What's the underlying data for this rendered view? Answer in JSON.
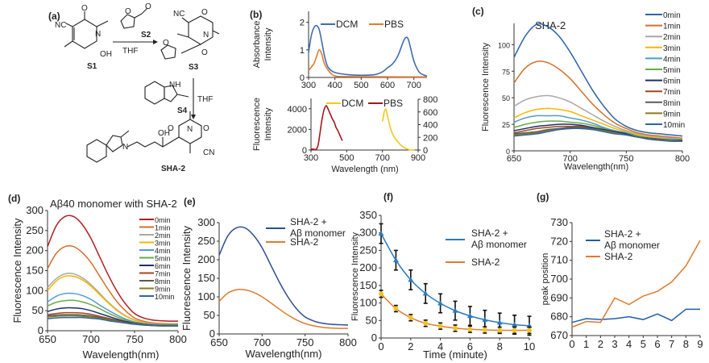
{
  "panel_labels": [
    "(a)",
    "(b)",
    "(c)",
    "(d)",
    "(e)",
    "(f)",
    "(g)"
  ],
  "scheme": {
    "S1": "S1",
    "S2": "S2",
    "S3": "S3",
    "S4": "S4",
    "product": "SHA-2",
    "reagent1": "THF",
    "reagent2": "THF",
    "atoms": {
      "NC": "NC",
      "CN": "CN",
      "N": "N",
      "O": "O",
      "OH": "OH",
      "NH": "NH"
    }
  },
  "chart_data": [
    {
      "id": "b_abs",
      "type": "line",
      "title": "",
      "xlabel": "",
      "ylabel": [
        "Absorbance",
        "Intensity"
      ],
      "xlim": [
        300,
        750
      ],
      "ylim": [
        0,
        2.4
      ],
      "xticks": [
        300,
        400,
        500,
        600,
        700
      ],
      "yticks": [
        0,
        1,
        2
      ],
      "legend": "top-center-horizontal",
      "series": [
        {
          "name": "DCM",
          "color": "#3d6eb0",
          "x": [
            300,
            310,
            320,
            330,
            340,
            350,
            360,
            370,
            380,
            400,
            450,
            500,
            550,
            580,
            600,
            620,
            640,
            660,
            670,
            680,
            700,
            720,
            740,
            750
          ],
          "y": [
            0.9,
            1.5,
            1.8,
            1.88,
            1.75,
            1.3,
            0.8,
            0.45,
            0.3,
            0.18,
            0.1,
            0.08,
            0.1,
            0.2,
            0.35,
            0.5,
            0.8,
            1.3,
            1.45,
            1.35,
            0.6,
            0.2,
            0.08,
            0.05
          ]
        },
        {
          "name": "PBS",
          "color": "#e07b2e",
          "x": [
            300,
            320,
            330,
            340,
            350,
            360,
            380,
            400,
            450,
            750
          ],
          "y": [
            0.25,
            0.5,
            0.75,
            1.0,
            0.85,
            0.5,
            0.2,
            0.06,
            0.03,
            0.02
          ]
        }
      ]
    },
    {
      "id": "b_fl",
      "type": "line",
      "title": "",
      "xlabel": "Wavelength (nm)",
      "ylabel": [
        "Fluorescence",
        "Intensity"
      ],
      "xlim": [
        300,
        900
      ],
      "ylim": [
        0,
        5000
      ],
      "ylim_right": [
        0,
        800
      ],
      "xticks": [
        300,
        500,
        700,
        900
      ],
      "yticks": [
        0,
        2000,
        4000
      ],
      "yticks_right": [
        0,
        200,
        400,
        600,
        800
      ],
      "legend": "top-center-horizontal",
      "series": [
        {
          "name": "DCM",
          "color": "#f2c81b",
          "axis": "right",
          "x": [
            700,
            705,
            710,
            720,
            730,
            740,
            750,
            765,
            780,
            810,
            850,
            880
          ],
          "y": [
            450,
            520,
            600,
            640,
            520,
            400,
            300,
            210,
            150,
            60,
            5,
            0
          ]
        },
        {
          "name": "PBS",
          "color": "#a3171e",
          "axis": "left",
          "x": [
            300,
            320,
            330,
            340,
            350,
            360,
            370,
            375,
            385,
            395,
            400,
            410,
            420,
            430,
            440,
            450,
            460,
            470,
            475
          ],
          "y": [
            100,
            60,
            80,
            500,
            1600,
            2800,
            3700,
            4000,
            4300,
            4000,
            3800,
            3400,
            3000,
            2700,
            2200,
            1900,
            1500,
            1100,
            900
          ]
        }
      ]
    },
    {
      "id": "c",
      "type": "line",
      "title": "SHA-2",
      "xlabel": "Wavelength(nm)",
      "ylabel": "Fluorescence Intensity",
      "xlim": [
        650,
        800
      ],
      "ylim": [
        0,
        120
      ],
      "xticks": [
        650,
        700,
        750,
        800
      ],
      "yticks": [
        0,
        25,
        50,
        75,
        100
      ],
      "legend": "right",
      "x": [
        650,
        660,
        670,
        680,
        690,
        700,
        710,
        720,
        730,
        740,
        750,
        760,
        770,
        780,
        790,
        800
      ],
      "series": [
        {
          "name": "0min",
          "color": "#2e62a8",
          "y": [
            88,
            108,
            119,
            117,
            108,
            93,
            75,
            57,
            42,
            30,
            23,
            19,
            17,
            16,
            15,
            14
          ]
        },
        {
          "name": "1min",
          "color": "#d4702b",
          "y": [
            64,
            78,
            84,
            83,
            77,
            68,
            56,
            44,
            34,
            26,
            21,
            17,
            15,
            14,
            13,
            12
          ]
        },
        {
          "name": "2min",
          "color": "#a8a8a8",
          "y": [
            42,
            48,
            51,
            52,
            50,
            46,
            40,
            34,
            28,
            23,
            19,
            16,
            14,
            13,
            12,
            11
          ]
        },
        {
          "name": "3min",
          "color": "#f5b800",
          "y": [
            31,
            36,
            39,
            40,
            39,
            37,
            33,
            29,
            25,
            21,
            18,
            15,
            13,
            12,
            11,
            11
          ]
        },
        {
          "name": "4min",
          "color": "#4f9bd0",
          "y": [
            27,
            31,
            33,
            33,
            33,
            31,
            29,
            26,
            22,
            19,
            17,
            14,
            12,
            11,
            11,
            10
          ]
        },
        {
          "name": "5min",
          "color": "#6aab46",
          "y": [
            22,
            25,
            27,
            28,
            28,
            27,
            26,
            24,
            21,
            18,
            16,
            14,
            12,
            11,
            10,
            10
          ]
        },
        {
          "name": "6min",
          "color": "#1f2f6e",
          "y": [
            19,
            21,
            23,
            24,
            25,
            25,
            24,
            22,
            20,
            18,
            16,
            13,
            12,
            11,
            10,
            10
          ]
        },
        {
          "name": "7min",
          "color": "#9c4a1c",
          "y": [
            17,
            19,
            21,
            22,
            23,
            23,
            23,
            21,
            19,
            17,
            15,
            13,
            12,
            11,
            10,
            9
          ]
        },
        {
          "name": "8min",
          "color": "#5a5a5a",
          "y": [
            16,
            17,
            18,
            20,
            21,
            22,
            22,
            21,
            19,
            17,
            15,
            13,
            12,
            11,
            10,
            9
          ]
        },
        {
          "name": "9min",
          "color": "#8b7a1a",
          "y": [
            15,
            16,
            17,
            19,
            20,
            21,
            21,
            20,
            19,
            17,
            15,
            13,
            11,
            10,
            10,
            9
          ]
        },
        {
          "name": "10min",
          "color": "#2a66a8",
          "y": [
            14,
            15,
            16,
            18,
            20,
            21,
            21,
            20,
            18,
            16,
            15,
            13,
            11,
            10,
            9,
            9
          ]
        }
      ]
    },
    {
      "id": "d",
      "type": "line",
      "title": "Aβ40 monomer with SHA-2",
      "xlabel": "Wavelength(nm)",
      "ylabel": "Fluorescence Intensity",
      "xlim": [
        650,
        800
      ],
      "ylim": [
        0,
        300
      ],
      "xticks": [
        650,
        700,
        750,
        800
      ],
      "yticks": [
        0,
        50,
        100,
        150,
        200,
        250,
        300
      ],
      "legend": "top-right",
      "x": [
        650,
        660,
        670,
        680,
        690,
        700,
        710,
        720,
        730,
        740,
        750,
        760,
        770,
        780,
        790,
        800
      ],
      "series": [
        {
          "name": "0min",
          "color": "#b01e23",
          "y": [
            210,
            262,
            285,
            285,
            265,
            230,
            184,
            138,
            98,
            66,
            43,
            32,
            27,
            25,
            24,
            24
          ]
        },
        {
          "name": "1min",
          "color": "#d4702b",
          "y": [
            155,
            193,
            210,
            210,
            195,
            170,
            136,
            102,
            72,
            49,
            32,
            24,
            20,
            18,
            17,
            17
          ]
        },
        {
          "name": "2min",
          "color": "#a8a8a8",
          "y": [
            108,
            130,
            142,
            142,
            132,
            115,
            93,
            71,
            52,
            37,
            27,
            21,
            18,
            16,
            15,
            15
          ]
        },
        {
          "name": "3min",
          "color": "#f5b800",
          "y": [
            100,
            124,
            136,
            136,
            127,
            111,
            90,
            69,
            50,
            36,
            26,
            20,
            17,
            16,
            15,
            15
          ]
        },
        {
          "name": "4min",
          "color": "#4f9bd0",
          "y": [
            72,
            86,
            93,
            93,
            88,
            78,
            64,
            51,
            39,
            29,
            22,
            18,
            16,
            15,
            14,
            14
          ]
        },
        {
          "name": "5min",
          "color": "#6aab46",
          "y": [
            62,
            71,
            75,
            76,
            72,
            65,
            55,
            44,
            34,
            26,
            20,
            17,
            15,
            14,
            14,
            13
          ]
        },
        {
          "name": "6min",
          "color": "#1f2f6e",
          "y": [
            48,
            54,
            57,
            57,
            55,
            50,
            43,
            36,
            29,
            23,
            19,
            16,
            14,
            13,
            13,
            13
          ]
        },
        {
          "name": "7min",
          "color": "#9c4a1c",
          "y": [
            40,
            43,
            45,
            45,
            44,
            41,
            36,
            31,
            26,
            21,
            18,
            15,
            14,
            13,
            13,
            12
          ]
        },
        {
          "name": "8min",
          "color": "#5a5a5a",
          "y": [
            37,
            39,
            40,
            40,
            39,
            37,
            33,
            29,
            24,
            20,
            17,
            15,
            13,
            13,
            12,
            12
          ]
        },
        {
          "name": "9min",
          "color": "#8b7a1a",
          "y": [
            34,
            36,
            37,
            37,
            36,
            34,
            31,
            27,
            23,
            19,
            17,
            15,
            13,
            12,
            12,
            12
          ]
        },
        {
          "name": "10min",
          "color": "#2a66a8",
          "y": [
            30,
            32,
            33,
            33,
            33,
            31,
            29,
            25,
            22,
            19,
            16,
            14,
            13,
            12,
            12,
            12
          ]
        }
      ]
    },
    {
      "id": "e",
      "type": "line",
      "title": "",
      "xlabel": "Wavelength(nm)",
      "ylabel": "Fluorescence Intensity",
      "xlim": [
        650,
        800
      ],
      "ylim": [
        0,
        300
      ],
      "xticks": [
        650,
        700,
        750,
        800
      ],
      "yticks": [
        0,
        50,
        100,
        150,
        200,
        250,
        300
      ],
      "legend": "top-right",
      "x": [
        650,
        660,
        670,
        680,
        690,
        700,
        710,
        720,
        730,
        740,
        750,
        760,
        770,
        780,
        790,
        800
      ],
      "series": [
        {
          "name": [
            "SHA-2 +",
            "Aβ monomer"
          ],
          "color": "#2e4f8f",
          "y": [
            212,
            264,
            286,
            286,
            266,
            232,
            186,
            140,
            100,
            68,
            46,
            35,
            29,
            26,
            25,
            24
          ]
        },
        {
          "name": "SHA-2",
          "color": "#e07b2e",
          "y": [
            88,
            110,
            119,
            119,
            112,
            100,
            84,
            67,
            51,
            38,
            28,
            22,
            18,
            16,
            15,
            15
          ]
        }
      ]
    },
    {
      "id": "f",
      "type": "line",
      "title": "",
      "xlabel": "Time (minute)",
      "ylabel": "Fluorescence Intensity",
      "xlim": [
        0,
        10
      ],
      "ylim": [
        0,
        350
      ],
      "xticks": [
        0,
        2,
        4,
        6,
        8,
        10
      ],
      "yticks": [
        0,
        50,
        100,
        150,
        200,
        250,
        300,
        350
      ],
      "legend": "top-right",
      "x": [
        0,
        1,
        2,
        3,
        4,
        5,
        6,
        7,
        8,
        9,
        10
      ],
      "series": [
        {
          "name": [
            "SHA-2 +",
            "Aβ monomer"
          ],
          "color": "#2a7bbf",
          "marker": "triangle",
          "marker_color": "#2a7bbf",
          "y": [
            298,
            222,
            166,
            127,
            99,
            78,
            63,
            52,
            44,
            38,
            35
          ],
          "error": [
            28,
            28,
            28,
            28,
            27,
            27,
            27,
            27,
            27,
            27,
            27
          ]
        },
        {
          "name": "SHA-2",
          "color": "#e07b2e",
          "marker": "circle",
          "marker_color": "#f5c020",
          "y": [
            126,
            84,
            58,
            42,
            34,
            28,
            25,
            23,
            22,
            22,
            22
          ],
          "error": [
            10,
            9,
            9,
            9,
            9,
            9,
            9,
            9,
            9,
            9,
            9
          ]
        }
      ]
    },
    {
      "id": "g",
      "type": "line",
      "title": "",
      "xlabel": "",
      "ylabel": "peak position",
      "xlim": [
        0,
        9
      ],
      "ylim": [
        670,
        730
      ],
      "xticks": [
        0,
        1,
        2,
        3,
        4,
        5,
        6,
        7,
        8,
        9
      ],
      "yticks": [
        670,
        680,
        690,
        700,
        710,
        720,
        730
      ],
      "legend": "top-left",
      "x": [
        0,
        1,
        2,
        3,
        4,
        5,
        6,
        7,
        8,
        9
      ],
      "series": [
        {
          "name": [
            "SHA-2 +",
            "Aβ monomer"
          ],
          "color": "#1f5fa8",
          "y": [
            677,
            679,
            678.5,
            679,
            680,
            678.5,
            681.5,
            678,
            684,
            684
          ]
        },
        {
          "name": "SHA-2",
          "color": "#e07b2e",
          "y": [
            674.5,
            677.5,
            677,
            690,
            686.5,
            691,
            693.5,
            698.5,
            707,
            720.5
          ]
        }
      ]
    }
  ]
}
